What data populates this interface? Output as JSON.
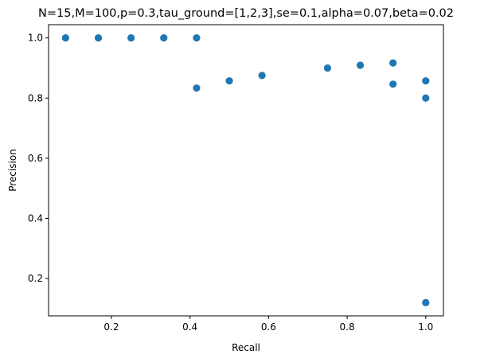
{
  "chart_data": {
    "type": "scatter",
    "title": "N=15,M=100,p=0.3,tau_ground=[1,2,3],se=0.1,alpha=0.07,beta=0.02",
    "xlabel": "Recall",
    "ylabel": "Precision",
    "xlim": [
      0.04,
      1.045
    ],
    "ylim": [
      0.076,
      1.044
    ],
    "xticks": [
      0.2,
      0.4,
      0.6,
      0.8,
      1.0
    ],
    "xtick_labels": [
      "0.2",
      "0.4",
      "0.6",
      "0.8",
      "1.0"
    ],
    "yticks": [
      0.2,
      0.4,
      0.6,
      0.8,
      1.0
    ],
    "ytick_labels": [
      "0.2",
      "0.4",
      "0.6",
      "0.8",
      "1.0"
    ],
    "grid": false,
    "legend": "none",
    "color": "#1f77b4",
    "points": [
      {
        "x": 0.0833,
        "y": 1.0
      },
      {
        "x": 0.1667,
        "y": 1.0
      },
      {
        "x": 0.25,
        "y": 1.0
      },
      {
        "x": 0.3333,
        "y": 1.0
      },
      {
        "x": 0.4167,
        "y": 1.0
      },
      {
        "x": 0.4167,
        "y": 0.8333
      },
      {
        "x": 0.5,
        "y": 0.8571
      },
      {
        "x": 0.5833,
        "y": 0.875
      },
      {
        "x": 0.75,
        "y": 0.9
      },
      {
        "x": 0.8333,
        "y": 0.9091
      },
      {
        "x": 0.9167,
        "y": 0.9167
      },
      {
        "x": 0.9167,
        "y": 0.8462
      },
      {
        "x": 1.0,
        "y": 0.8571
      },
      {
        "x": 1.0,
        "y": 0.8
      },
      {
        "x": 1.0,
        "y": 0.12
      }
    ]
  }
}
